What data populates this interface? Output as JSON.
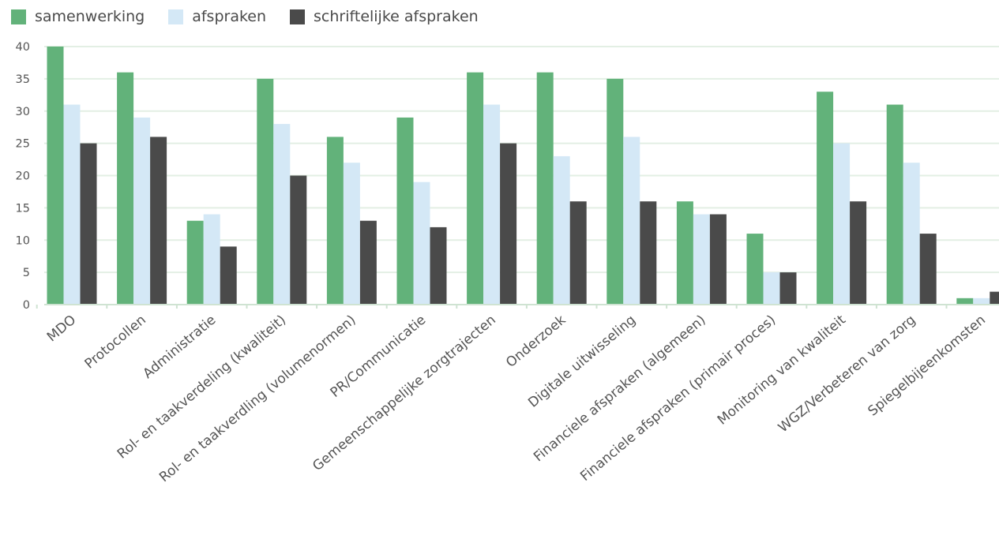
{
  "colors": {
    "samenwerking": "#62b27a",
    "afspraken": "#d4e8f6",
    "schriftelijke_afspraken": "#4a4a4a",
    "grid": "#e3efe4",
    "axis": "#cfe3d2"
  },
  "legend": {
    "items": [
      {
        "label": "samenwerking",
        "color": "#62b27a"
      },
      {
        "label": "afspraken",
        "color": "#d4e8f6"
      },
      {
        "label": "schriftelijke afspraken",
        "color": "#4a4a4a"
      }
    ]
  },
  "chart_data": {
    "type": "bar",
    "title": "",
    "xlabel": "",
    "ylabel": "",
    "ylim": [
      0,
      40
    ],
    "yticks": [
      0,
      5,
      10,
      15,
      20,
      25,
      30,
      35,
      40
    ],
    "grid": true,
    "legend_position": "top-left",
    "categories": [
      "MDO",
      "Protocollen",
      "Administratie",
      "Rol- en taakverdeling (kwaliteit)",
      "Rol- en taakverdling (volumenormen)",
      "PR/Communicatie",
      "Gemeenschappelijke zorgtrajecten",
      "Onderzoek",
      "Digitale uitwisseling",
      "Financiele afspraken (algemeen)",
      "Financiele afspraken (primair proces)",
      "Monitoring van kwaliteit",
      "WGZ/Verbeteren van zorg",
      "Spiegelbijeenkomsten"
    ],
    "series": [
      {
        "name": "samenwerking",
        "color": "#62b27a",
        "values": [
          40,
          36,
          13,
          35,
          26,
          29,
          36,
          36,
          35,
          16,
          11,
          33,
          31,
          1
        ]
      },
      {
        "name": "afspraken",
        "color": "#d4e8f6",
        "values": [
          31,
          29,
          14,
          28,
          22,
          19,
          31,
          23,
          26,
          14,
          5,
          25,
          22,
          1
        ]
      },
      {
        "name": "schriftelijke afspraken",
        "color": "#4a4a4a",
        "values": [
          25,
          26,
          9,
          20,
          13,
          12,
          25,
          16,
          16,
          14,
          5,
          16,
          11,
          2
        ]
      }
    ]
  }
}
